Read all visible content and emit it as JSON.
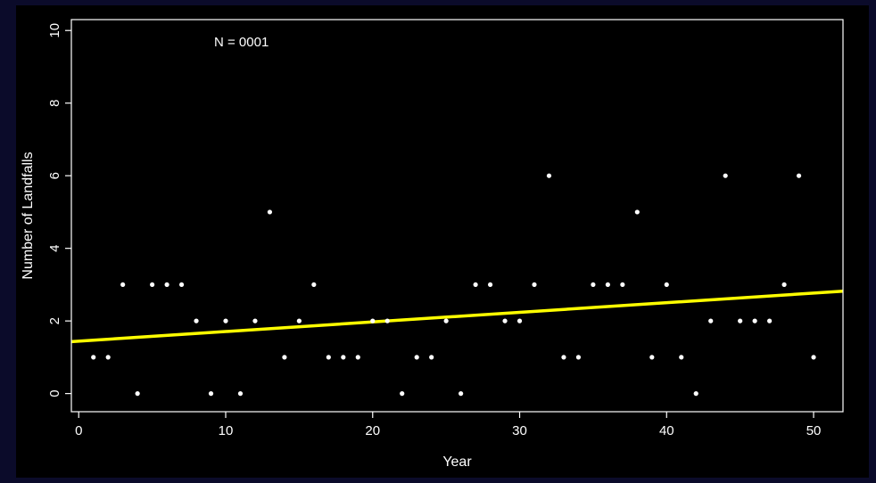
{
  "chart_data": {
    "type": "scatter",
    "title": "",
    "xlabel": "Year",
    "ylabel": "Number of Landfalls",
    "annotation": "N = 0001",
    "xlim": [
      -0.5,
      52
    ],
    "ylim": [
      -0.5,
      10.3
    ],
    "x_ticks": [
      0,
      10,
      20,
      30,
      40,
      50
    ],
    "y_ticks": [
      0,
      2,
      4,
      6,
      8,
      10
    ],
    "grid": false,
    "colors": {
      "points": "#ffffff",
      "trend": "#ffff00",
      "background": "#000000",
      "axes": "#ffffff"
    },
    "series": [
      {
        "x": [
          1,
          2,
          3,
          4,
          5,
          6,
          7,
          8,
          9,
          10,
          11,
          12,
          13,
          14,
          15,
          16,
          17,
          18,
          19,
          20,
          21,
          22,
          23,
          24,
          25,
          26,
          27,
          28,
          29,
          30,
          31,
          32,
          33,
          34,
          35,
          36,
          37,
          38,
          39,
          40,
          41,
          42,
          43,
          44,
          45,
          46,
          47,
          48,
          49,
          50
        ],
        "y": [
          1,
          1,
          3,
          0,
          3,
          3,
          3,
          2,
          0,
          2,
          0,
          2,
          5,
          1,
          2,
          3,
          1,
          1,
          1,
          2,
          2,
          0,
          1,
          1,
          2,
          0,
          3,
          3,
          2,
          2,
          3,
          6,
          1,
          1,
          3,
          3,
          3,
          5,
          1,
          3,
          1,
          0,
          2,
          6,
          2,
          2,
          2,
          3,
          6,
          1
        ]
      }
    ],
    "trend_line": {
      "x": [
        -0.5,
        52
      ],
      "y": [
        1.43,
        2.82
      ]
    }
  }
}
